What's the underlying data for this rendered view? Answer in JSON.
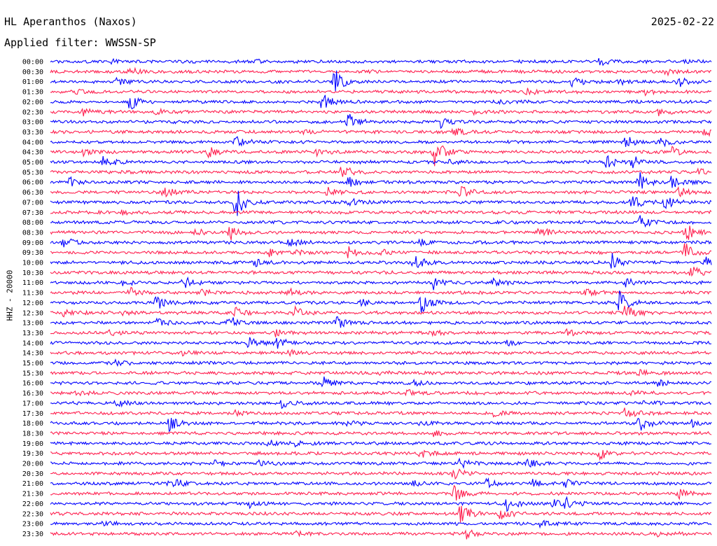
{
  "header": {
    "station": "HL Aperanthos (Naxos)",
    "filter_prefix": "Applied filter:",
    "filter_name": "WWSSN-SP",
    "date": "2025-02-22"
  },
  "side_label": "HHZ - 20000",
  "colors": {
    "trace_a": "#0000ff",
    "trace_b": "#ff1f4f",
    "text": "#000000",
    "background": "#ffffff"
  },
  "chart_data": {
    "type": "helicorder",
    "title": "",
    "rows": [
      "00:00",
      "00:30",
      "01:00",
      "01:30",
      "02:00",
      "02:30",
      "03:00",
      "03:30",
      "04:00",
      "04:30",
      "05:00",
      "05:30",
      "06:00",
      "06:30",
      "07:00",
      "07:30",
      "08:00",
      "08:30",
      "09:00",
      "09:30",
      "10:00",
      "10:30",
      "11:00",
      "11:30",
      "12:00",
      "12:30",
      "13:00",
      "13:30",
      "14:00",
      "14:30",
      "15:00",
      "15:30",
      "16:00",
      "16:30",
      "17:00",
      "17:30",
      "18:00",
      "18:30",
      "19:00",
      "19:30",
      "20:00",
      "20:30",
      "21:00",
      "21:30",
      "22:00",
      "22:30",
      "23:00",
      "23:30"
    ],
    "row_minutes": 30,
    "row_colors": [
      "#0000ff",
      "#ff1f4f"
    ],
    "events": [
      [
        0,
        0.09,
        0.5
      ],
      [
        0,
        0.31,
        0.7
      ],
      [
        0,
        0.83,
        1.0
      ],
      [
        0,
        0.96,
        0.5
      ],
      [
        1,
        0.12,
        1.1
      ],
      [
        1,
        0.47,
        0.4
      ],
      [
        1,
        0.93,
        0.8
      ],
      [
        2,
        0.1,
        0.8
      ],
      [
        2,
        0.43,
        3.2
      ],
      [
        2,
        0.79,
        1.6
      ],
      [
        2,
        0.86,
        0.6
      ],
      [
        2,
        0.95,
        1.4
      ],
      [
        3,
        0.04,
        0.5
      ],
      [
        3,
        0.72,
        0.9
      ],
      [
        3,
        0.9,
        0.9
      ],
      [
        4,
        0.12,
        2.4
      ],
      [
        4,
        0.41,
        2.3
      ],
      [
        4,
        0.68,
        0.5
      ],
      [
        5,
        0.05,
        1.2
      ],
      [
        5,
        0.16,
        0.6
      ],
      [
        5,
        0.64,
        0.8
      ],
      [
        5,
        0.92,
        1.0
      ],
      [
        6,
        0.45,
        2.4
      ],
      [
        6,
        0.59,
        1.8
      ],
      [
        7,
        0.38,
        0.7
      ],
      [
        7,
        0.61,
        1.0
      ],
      [
        7,
        0.99,
        1.2
      ],
      [
        8,
        0.28,
        1.8
      ],
      [
        8,
        0.87,
        1.6
      ],
      [
        8,
        0.92,
        1.4
      ],
      [
        9,
        0.05,
        0.8
      ],
      [
        9,
        0.24,
        1.4
      ],
      [
        9,
        0.4,
        0.8
      ],
      [
        9,
        0.58,
        4.5
      ],
      [
        9,
        0.94,
        1.2
      ],
      [
        10,
        0.08,
        1.5
      ],
      [
        10,
        0.6,
        0.7
      ],
      [
        10,
        0.84,
        2.2
      ],
      [
        10,
        0.88,
        1.8
      ],
      [
        11,
        0.44,
        1.9
      ],
      [
        11,
        0.98,
        0.9
      ],
      [
        12,
        0.03,
        1.4
      ],
      [
        12,
        0.45,
        1.3
      ],
      [
        12,
        0.89,
        2.8
      ],
      [
        12,
        0.94,
        1.6
      ],
      [
        13,
        0.17,
        1.8
      ],
      [
        13,
        0.42,
        1.3
      ],
      [
        13,
        0.62,
        1.7
      ],
      [
        13,
        0.95,
        1.6
      ],
      [
        14,
        0.28,
        4.5
      ],
      [
        14,
        0.45,
        1.6
      ],
      [
        14,
        0.88,
        2.2
      ],
      [
        14,
        0.93,
        1.8
      ],
      [
        15,
        0.11,
        0.7
      ],
      [
        16,
        0.89,
        1.7
      ],
      [
        17,
        0.22,
        1.1
      ],
      [
        17,
        0.27,
        2.2
      ],
      [
        17,
        0.74,
        1.7
      ],
      [
        17,
        0.96,
        2.6
      ],
      [
        18,
        0.02,
        1.3
      ],
      [
        18,
        0.36,
        1.4
      ],
      [
        18,
        0.56,
        0.8
      ],
      [
        19,
        0.33,
        1.1
      ],
      [
        19,
        0.37,
        0.8
      ],
      [
        19,
        0.45,
        1.6
      ],
      [
        19,
        0.5,
        0.8
      ],
      [
        19,
        0.96,
        2.6
      ],
      [
        20,
        0.31,
        1.1
      ],
      [
        20,
        0.55,
        2.0
      ],
      [
        20,
        0.85,
        2.4
      ],
      [
        20,
        0.99,
        1.4
      ],
      [
        21,
        0.97,
        1.6
      ],
      [
        22,
        0.11,
        1.1
      ],
      [
        22,
        0.2,
        1.6
      ],
      [
        22,
        0.58,
        1.7
      ],
      [
        22,
        0.67,
        1.0
      ],
      [
        22,
        0.87,
        1.2
      ],
      [
        23,
        0.12,
        1.2
      ],
      [
        23,
        0.23,
        0.7
      ],
      [
        23,
        0.36,
        1.1
      ],
      [
        23,
        0.81,
        1.2
      ],
      [
        24,
        0.16,
        1.9
      ],
      [
        24,
        0.47,
        0.9
      ],
      [
        24,
        0.56,
        2.8
      ],
      [
        24,
        0.86,
        3.5
      ],
      [
        25,
        0.02,
        0.8
      ],
      [
        25,
        0.11,
        0.6
      ],
      [
        25,
        0.28,
        1.4
      ],
      [
        25,
        0.37,
        1.5
      ],
      [
        25,
        0.87,
        2.6
      ],
      [
        26,
        0.16,
        1.6
      ],
      [
        26,
        0.27,
        1.8
      ],
      [
        26,
        0.43,
        2.8
      ],
      [
        27,
        0.09,
        0.6
      ],
      [
        27,
        0.34,
        0.8
      ],
      [
        27,
        0.58,
        1.0
      ],
      [
        27,
        0.78,
        0.9
      ],
      [
        27,
        0.97,
        0.8
      ],
      [
        28,
        0.3,
        1.5
      ],
      [
        28,
        0.34,
        2.4
      ],
      [
        28,
        0.69,
        0.9
      ],
      [
        29,
        0.2,
        0.8
      ],
      [
        29,
        0.36,
        0.8
      ],
      [
        30,
        0.1,
        0.8
      ],
      [
        31,
        0.5,
        0.5
      ],
      [
        31,
        0.89,
        0.7
      ],
      [
        32,
        0.41,
        2.0
      ],
      [
        32,
        0.55,
        0.8
      ],
      [
        32,
        0.92,
        1.0
      ],
      [
        33,
        0.04,
        0.6
      ],
      [
        33,
        0.54,
        0.7
      ],
      [
        33,
        0.88,
        0.8
      ],
      [
        34,
        0.1,
        1.0
      ],
      [
        34,
        0.35,
        1.1
      ],
      [
        34,
        0.9,
        0.9
      ],
      [
        35,
        0.28,
        0.6
      ],
      [
        35,
        0.67,
        1.0
      ],
      [
        35,
        0.87,
        1.6
      ],
      [
        36,
        0.18,
        2.2
      ],
      [
        36,
        0.45,
        0.8
      ],
      [
        36,
        0.56,
        0.9
      ],
      [
        36,
        0.89,
        2.8
      ],
      [
        36,
        0.97,
        1.0
      ],
      [
        37,
        0.58,
        0.8
      ],
      [
        38,
        0.33,
        0.8
      ],
      [
        38,
        0.37,
        0.7
      ],
      [
        39,
        0.56,
        1.2
      ],
      [
        39,
        0.83,
        1.6
      ],
      [
        40,
        0.25,
        1.0
      ],
      [
        40,
        0.31,
        1.0
      ],
      [
        40,
        0.62,
        1.4
      ],
      [
        40,
        0.72,
        1.1
      ],
      [
        41,
        0.61,
        1.7
      ],
      [
        42,
        0.18,
        2.2
      ],
      [
        42,
        0.55,
        1.0
      ],
      [
        42,
        0.66,
        1.2
      ],
      [
        42,
        0.73,
        1.0
      ],
      [
        42,
        0.78,
        1.0
      ],
      [
        43,
        0.61,
        2.4
      ],
      [
        43,
        0.95,
        1.2
      ],
      [
        44,
        0.3,
        1.0
      ],
      [
        44,
        0.69,
        1.7
      ],
      [
        44,
        0.76,
        1.2
      ],
      [
        44,
        0.78,
        1.4
      ],
      [
        45,
        0.62,
        3.0
      ],
      [
        45,
        0.68,
        1.6
      ],
      [
        46,
        0.08,
        0.8
      ],
      [
        46,
        0.74,
        1.0
      ],
      [
        47,
        0.37,
        0.5
      ],
      [
        47,
        0.63,
        1.4
      ],
      [
        47,
        0.92,
        0.8
      ]
    ]
  }
}
